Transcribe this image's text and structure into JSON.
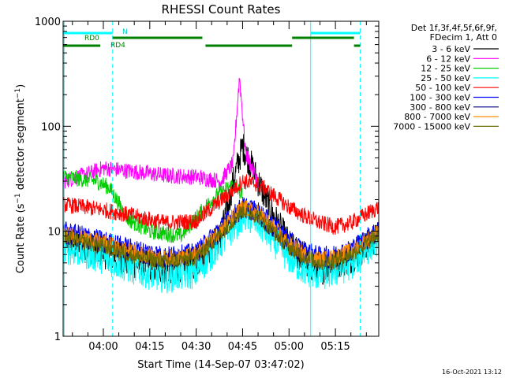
{
  "chart_data": {
    "type": "line",
    "title": "RHESSI Count Rates",
    "xlabel": "Start Time (14-Sep-07 03:47:02)",
    "ylabel": "Count Rate (s^-1 detector segment^-1)",
    "ylabel_parts": {
      "main": "Count Rate (s",
      "sup1": "−1",
      "mid": " detector segment",
      "sup2": "−1",
      "end": ")"
    },
    "y_scale": "log",
    "ylim": [
      1,
      1000
    ],
    "xlim": [
      "03:47",
      "05:29"
    ],
    "x_ticks": [
      "04:00",
      "04:15",
      "04:30",
      "04:45",
      "05:00",
      "05:15"
    ],
    "y_ticks": [
      "1",
      "10",
      "100",
      "1000"
    ],
    "grid": false,
    "footer_date": "16-Oct-2021 13:12",
    "legend": {
      "position": "right",
      "header": [
        "Det 1f,3f,4f,5f,6f,9f,",
        "FDecim 1, Att 0"
      ]
    },
    "series": [
      {
        "name": "3 - 6 keV",
        "color": "#000000",
        "times": [
          "03:47",
          "04:00",
          "04:10",
          "04:20",
          "04:30",
          "04:38",
          "04:42",
          "04:45",
          "04:50",
          "04:55",
          "05:00",
          "05:05",
          "05:10",
          "05:15",
          "05:20",
          "05:29"
        ],
        "values": [
          8,
          6.2,
          5,
          4.3,
          5,
          9,
          30,
          65,
          30,
          14,
          7.5,
          5,
          4.3,
          5,
          5.5,
          9
        ]
      },
      {
        "name": "6 - 12 keV",
        "color": "#ff00ff",
        "times": [
          "03:47",
          "03:55",
          "04:00",
          "04:10",
          "04:20",
          "04:30",
          "04:38",
          "04:42",
          "04:43",
          "04:44",
          "04:46",
          "04:50"
        ],
        "values": [
          30,
          35,
          40,
          37,
          34,
          33,
          30,
          45,
          120,
          300,
          55,
          30
        ]
      },
      {
        "name": "12 - 25 keV",
        "color": "#00cc00",
        "times": [
          "03:47",
          "03:58",
          "04:02",
          "04:08",
          "04:15",
          "04:25",
          "04:35",
          "04:42",
          "04:45"
        ],
        "values": [
          33,
          30,
          26,
          13,
          10,
          9,
          20,
          28,
          22
        ]
      },
      {
        "name": "25 - 50 keV",
        "color": "#00ffff",
        "times": [
          "03:47",
          "04:00",
          "04:10",
          "04:20",
          "04:30",
          "04:40",
          "04:45",
          "04:50",
          "04:55",
          "05:00",
          "05:05",
          "05:10",
          "05:15",
          "05:20",
          "05:29"
        ],
        "values": [
          7,
          5.5,
          4.3,
          3.6,
          4,
          9,
          14,
          12,
          8,
          5.5,
          4.2,
          3.8,
          4.1,
          4.8,
          8.5
        ]
      },
      {
        "name": "50 - 100 keV",
        "color": "#ff0000",
        "times": [
          "03:47",
          "04:00",
          "04:10",
          "04:20",
          "04:30",
          "04:40",
          "04:45",
          "04:50",
          "04:55",
          "05:00",
          "05:05",
          "05:10",
          "05:15",
          "05:20",
          "05:29"
        ],
        "values": [
          18,
          16,
          14,
          12,
          12.5,
          22,
          30,
          28,
          22,
          17,
          14,
          12,
          11,
          12,
          17
        ]
      },
      {
        "name": "100 - 300 keV",
        "color": "#0000ff",
        "times": [
          "03:47",
          "04:00",
          "04:10",
          "04:20",
          "04:30",
          "04:40",
          "04:45",
          "04:50",
          "04:55",
          "05:00",
          "05:05",
          "05:10",
          "05:15",
          "05:20",
          "05:29"
        ],
        "values": [
          10.5,
          8.5,
          7,
          6,
          6.5,
          13,
          18,
          16,
          12,
          8.5,
          6.8,
          6,
          6.2,
          7,
          11
        ]
      },
      {
        "name": "300 - 800 keV",
        "color": "#00008b",
        "times": [
          "03:47",
          "04:00",
          "04:10",
          "04:20",
          "04:30",
          "04:40",
          "04:45",
          "04:50",
          "04:55",
          "05:00",
          "05:05",
          "05:10",
          "05:15",
          "05:20",
          "05:29"
        ],
        "values": [
          9,
          7.5,
          6,
          5.3,
          5.8,
          11,
          16,
          14,
          10,
          7.2,
          5.8,
          5.1,
          5.4,
          6.2,
          9.5
        ]
      },
      {
        "name": "800 - 7000 keV",
        "color": "#ff8c00",
        "times": [
          "03:47",
          "04:00",
          "04:10",
          "04:20",
          "04:30",
          "04:40",
          "04:45",
          "04:50",
          "04:55",
          "05:00",
          "05:05",
          "05:10",
          "05:15",
          "05:20",
          "05:29"
        ],
        "values": [
          9.5,
          7.8,
          6.3,
          5.5,
          6,
          12,
          17,
          15,
          11,
          7.6,
          6.1,
          5.4,
          5.7,
          6.5,
          10
        ]
      },
      {
        "name": "7000 - 15000 keV",
        "color": "#6b6b00",
        "times": [
          "03:47",
          "04:00",
          "04:10",
          "04:20",
          "04:30",
          "04:40",
          "04:45",
          "04:50",
          "04:55",
          "05:00",
          "05:05",
          "05:10",
          "05:15",
          "05:20",
          "05:29"
        ],
        "values": [
          8.8,
          7.2,
          5.8,
          5.1,
          5.6,
          11,
          16,
          14,
          10,
          7,
          5.7,
          5,
          5.3,
          6,
          9.2
        ]
      }
    ],
    "annotations": {
      "labels": [
        "N",
        "RD0",
        "RD4"
      ],
      "vertical_lines": [
        {
          "time": "03:47:20",
          "color": "#00ffff",
          "style": "solid"
        },
        {
          "time": "04:03",
          "color": "#00ffff",
          "style": "dashed"
        },
        {
          "time": "05:07",
          "color": "#00ffff",
          "style": "solid"
        },
        {
          "time": "05:23",
          "color": "#00ffff",
          "style": "dashed"
        }
      ],
      "bars": [
        {
          "label": "N",
          "color": "#00ffff",
          "start": "03:47",
          "end": "04:03",
          "level": 0
        },
        {
          "label": "N",
          "color": "#00ffff",
          "start": "05:07",
          "end": "05:23",
          "level": 0
        },
        {
          "label": "RD0",
          "color": "#008000",
          "start": "04:03",
          "end": "04:32",
          "level": 1
        },
        {
          "label": "RD0",
          "color": "#008000",
          "start": "05:01",
          "end": "05:21",
          "level": 1
        },
        {
          "label": "RD4",
          "color": "#008000",
          "start": "03:47",
          "end": "03:59",
          "level": 2
        },
        {
          "label": "RD4",
          "color": "#008000",
          "start": "04:33",
          "end": "05:01",
          "level": 2
        },
        {
          "label": "RD4",
          "color": "#008000",
          "start": "05:21",
          "end": "05:23",
          "level": 2
        }
      ]
    }
  }
}
